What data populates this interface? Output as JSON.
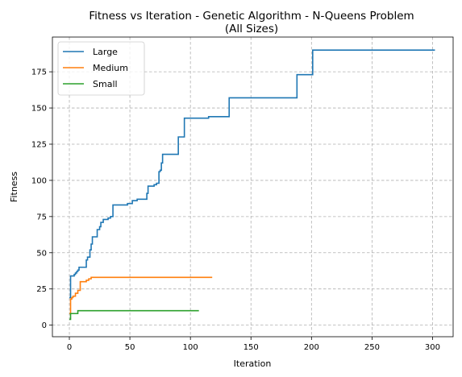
{
  "chart_data": {
    "type": "line",
    "title": "Fitness vs Iteration - Genetic Algorithm - N-Queens Problem",
    "subtitle": "(All Sizes)",
    "xlabel": "Iteration",
    "ylabel": "Fitness",
    "xlim": [
      -14,
      317
    ],
    "ylim": [
      -8,
      199
    ],
    "xticks": [
      0,
      50,
      100,
      150,
      200,
      250,
      300
    ],
    "yticks": [
      0,
      25,
      50,
      75,
      100,
      125,
      150,
      175
    ],
    "grid": true,
    "legend_position": "upper-left",
    "series": [
      {
        "name": "Large",
        "color": "#1f77b4",
        "step": true,
        "points": [
          [
            0,
            19
          ],
          [
            1,
            34
          ],
          [
            3,
            34
          ],
          [
            4,
            35
          ],
          [
            5,
            36
          ],
          [
            6,
            37
          ],
          [
            7,
            38
          ],
          [
            8,
            40
          ],
          [
            13,
            40
          ],
          [
            14,
            45
          ],
          [
            15,
            47
          ],
          [
            17,
            52
          ],
          [
            18,
            56
          ],
          [
            19,
            61
          ],
          [
            22,
            61
          ],
          [
            23,
            66
          ],
          [
            25,
            68
          ],
          [
            26,
            71
          ],
          [
            28,
            73
          ],
          [
            32,
            74
          ],
          [
            34,
            75
          ],
          [
            36,
            83
          ],
          [
            47,
            83
          ],
          [
            48,
            84
          ],
          [
            51,
            84
          ],
          [
            52,
            86
          ],
          [
            55,
            86
          ],
          [
            56,
            87
          ],
          [
            61,
            87
          ],
          [
            64,
            91
          ],
          [
            65,
            96
          ],
          [
            70,
            97
          ],
          [
            72,
            98
          ],
          [
            74,
            106
          ],
          [
            75,
            107
          ],
          [
            76,
            112
          ],
          [
            77,
            118
          ],
          [
            89,
            118
          ],
          [
            90,
            130
          ],
          [
            93,
            130
          ],
          [
            95,
            143
          ],
          [
            114,
            143
          ],
          [
            115,
            144
          ],
          [
            131,
            144
          ],
          [
            132,
            157
          ],
          [
            187,
            157
          ],
          [
            188,
            173
          ],
          [
            200,
            173
          ],
          [
            201,
            190
          ],
          [
            302,
            190
          ]
        ]
      },
      {
        "name": "Medium",
        "color": "#ff7f0e",
        "step": true,
        "points": [
          [
            0,
            8
          ],
          [
            1,
            18
          ],
          [
            2,
            19
          ],
          [
            3,
            20
          ],
          [
            5,
            22
          ],
          [
            7,
            24
          ],
          [
            9,
            30
          ],
          [
            13,
            30
          ],
          [
            14,
            31
          ],
          [
            16,
            32
          ],
          [
            18,
            33
          ],
          [
            118,
            33
          ]
        ]
      },
      {
        "name": "Small",
        "color": "#2ca02c",
        "step": true,
        "points": [
          [
            0,
            4
          ],
          [
            1,
            8
          ],
          [
            6,
            8
          ],
          [
            7,
            10
          ],
          [
            107,
            10
          ]
        ]
      }
    ]
  }
}
